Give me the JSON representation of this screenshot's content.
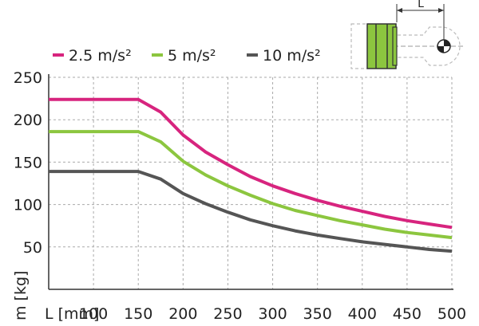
{
  "chart_data": {
    "type": "line",
    "xlabel": "L [mm]",
    "ylabel": "m [kg]",
    "x_ticks": [
      "100",
      "150",
      "200",
      "250",
      "300",
      "350",
      "400",
      "450",
      "500"
    ],
    "y_ticks": [
      "50",
      "100",
      "150",
      "200",
      "250"
    ],
    "xlim": [
      50,
      500
    ],
    "ylim": [
      0,
      250
    ],
    "grid": true,
    "legend_position": "top",
    "dimension_label": "L",
    "x": [
      50,
      150,
      175,
      200,
      225,
      250,
      275,
      300,
      325,
      350,
      375,
      400,
      425,
      450,
      475,
      500
    ],
    "series": [
      {
        "name": "2.5 m/s²",
        "color": "#d7247e",
        "values": [
          224,
          224,
          209,
          182,
          162,
          147,
          133,
          122,
          113,
          105,
          98,
          92,
          86,
          81,
          77,
          73
        ]
      },
      {
        "name": "5 m/s²",
        "color": "#8cc63f",
        "values": [
          186,
          186,
          174,
          151,
          135,
          122,
          111,
          101,
          93,
          87,
          81,
          76,
          71,
          67,
          64,
          61
        ]
      },
      {
        "name": "10 m/s²",
        "color": "#555555",
        "values": [
          139,
          139,
          130,
          113,
          101,
          91,
          82,
          75,
          69,
          64,
          60,
          56,
          53,
          50,
          47,
          45
        ]
      }
    ]
  }
}
